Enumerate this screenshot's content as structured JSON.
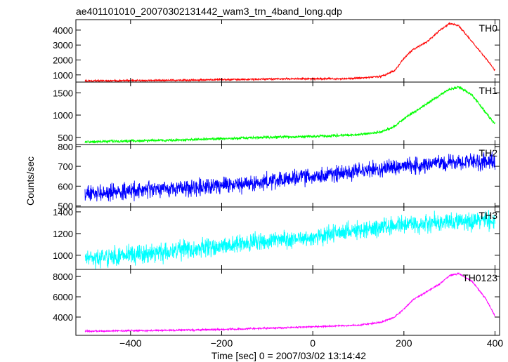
{
  "title": "ae401101010_20070302131442_wam3_trn_4band_long.qdp",
  "ylabel": "Counts/sec",
  "xlabel": "Time [sec] 0 = 2007/03/02 13:14:42",
  "chart_data": {
    "type": "line",
    "title": "ae401101010_20070302131442_wam3_trn_4band_long.qdp",
    "xlabel": "Time [sec] 0 = 2007/03/02 13:14:42",
    "ylabel": "Counts/sec",
    "xlim": [
      -520,
      410
    ],
    "x_ticks": [
      -400,
      -200,
      0,
      200,
      400
    ],
    "grid": false,
    "panels": [
      {
        "name": "TH0",
        "color": "#ff0000",
        "ylim": [
          520,
          4700
        ],
        "y_ticks": [
          1000,
          2000,
          3000,
          4000
        ],
        "noise": 30,
        "x": [
          -500,
          -400,
          -300,
          -200,
          -100,
          0,
          50,
          100,
          150,
          180,
          200,
          220,
          250,
          280,
          300,
          320,
          350,
          380,
          400
        ],
        "y": [
          600,
          620,
          640,
          680,
          720,
          750,
          730,
          780,
          900,
          1300,
          2100,
          2700,
          3200,
          4000,
          4450,
          4300,
          3200,
          2100,
          1300
        ]
      },
      {
        "name": "TH1",
        "color": "#00ff00",
        "ylim": [
          340,
          1740
        ],
        "y_ticks": [
          500,
          1000,
          1500
        ],
        "noise": 15,
        "x": [
          -500,
          -400,
          -300,
          -200,
          -100,
          0,
          100,
          150,
          180,
          200,
          250,
          280,
          300,
          320,
          350,
          380,
          400
        ],
        "y": [
          400,
          420,
          440,
          470,
          500,
          520,
          560,
          620,
          750,
          920,
          1250,
          1450,
          1580,
          1630,
          1450,
          1050,
          800
        ]
      },
      {
        "name": "TH2",
        "color": "#0000ff",
        "ylim": [
          495,
          810
        ],
        "y_ticks": [
          500,
          600,
          700,
          800
        ],
        "noise": 20,
        "x": [
          -500,
          -400,
          -300,
          -200,
          -100,
          0,
          100,
          200,
          300,
          400
        ],
        "y": [
          560,
          575,
          590,
          605,
          620,
          650,
          675,
          700,
          720,
          725
        ]
      },
      {
        "name": "TH3",
        "color": "#00ffff",
        "ylim": [
          870,
          1445
        ],
        "y_ticks": [
          1000,
          1200,
          1400
        ],
        "noise": 40,
        "x": [
          -500,
          -400,
          -300,
          -200,
          -100,
          0,
          100,
          200,
          300,
          400
        ],
        "y": [
          970,
          1000,
          1040,
          1090,
          1130,
          1170,
          1230,
          1280,
          1310,
          1320
        ]
      },
      {
        "name": "TH0123",
        "color": "#ff00ff",
        "ylim": [
          2200,
          8700
        ],
        "y_ticks": [
          4000,
          6000,
          8000
        ],
        "noise": 40,
        "x": [
          -500,
          -400,
          -300,
          -200,
          -100,
          0,
          100,
          150,
          180,
          200,
          220,
          250,
          280,
          300,
          320,
          350,
          380,
          400
        ],
        "y": [
          2600,
          2650,
          2700,
          2780,
          2900,
          3050,
          3200,
          3500,
          4000,
          4800,
          5700,
          6500,
          7300,
          8100,
          8300,
          7500,
          5800,
          4100
        ]
      }
    ]
  }
}
